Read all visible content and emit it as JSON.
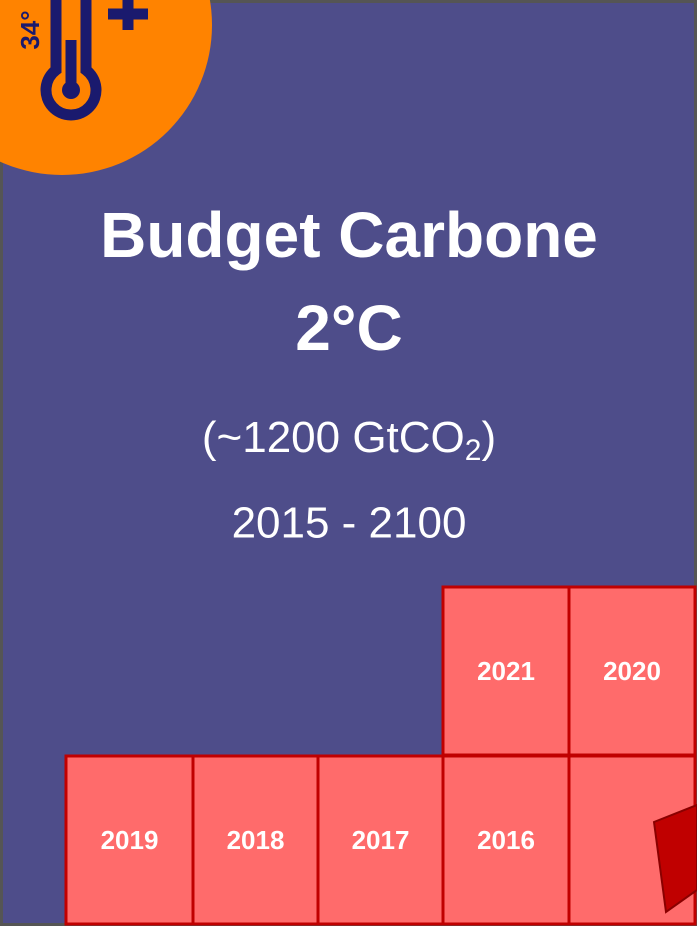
{
  "badge": {
    "text": "34°"
  },
  "title": {
    "line1": "Budget Carbone",
    "line2": "2°C"
  },
  "subtitle": {
    "before": "(~1200 GtCO",
    "subscript": "2",
    "after": ")"
  },
  "period": "2015 - 2100",
  "blocks": [
    "2021",
    "2020",
    "2019",
    "2018",
    "2017",
    "2016"
  ]
}
